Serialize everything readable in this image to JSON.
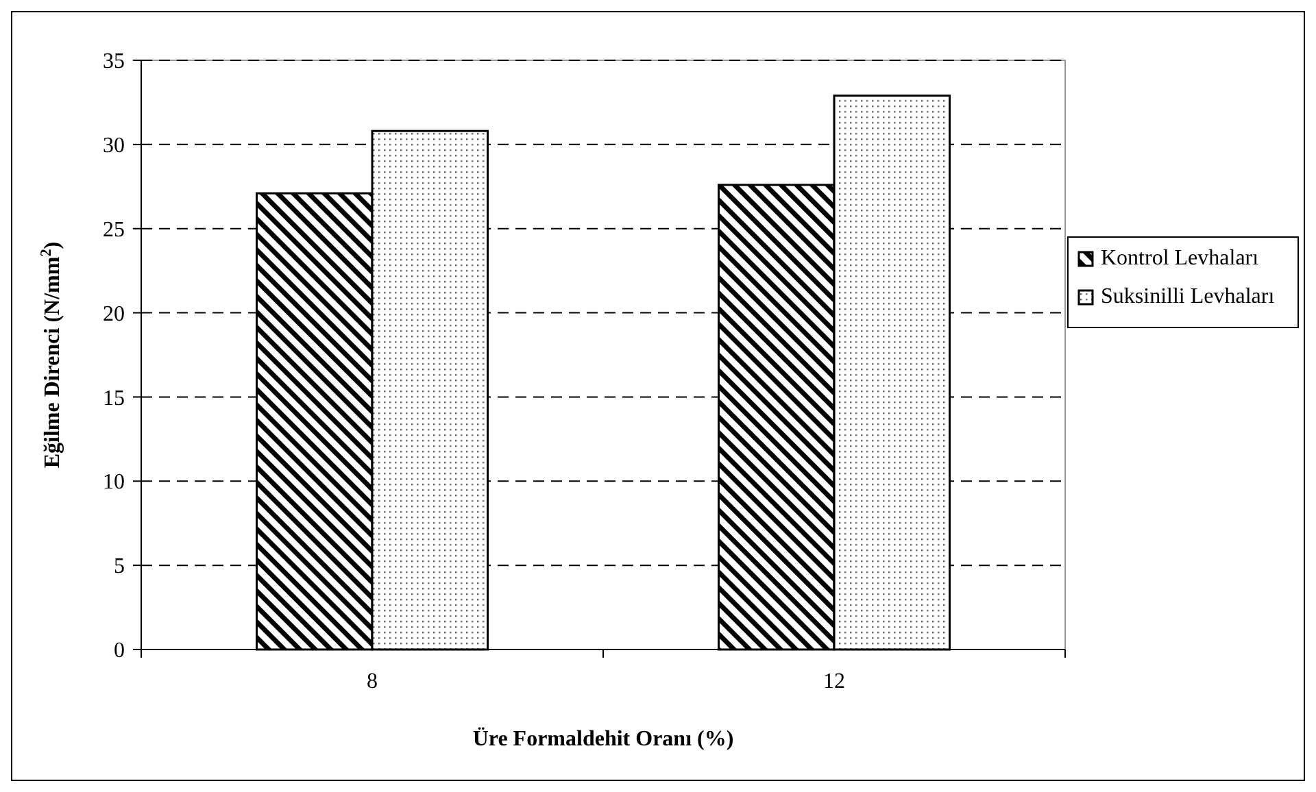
{
  "chart_data": {
    "type": "bar",
    "xlabel": "Üre Formaldehit Oranı (%)",
    "ylabel": "Eğilme Direnci (N/mm$^{2}$)",
    "categories": [
      "8",
      "12"
    ],
    "series": [
      {
        "name": "Kontrol Levhaları",
        "color": "#000000",
        "values": [
          27.1,
          27.6
        ]
      },
      {
        "name": "Suksinilli Levhaları",
        "color": "#000000",
        "values": [
          30.8,
          32.9
        ]
      }
    ],
    "ylim": [
      0,
      35
    ],
    "yticks": [
      0,
      5,
      10,
      15,
      20,
      25,
      30,
      35
    ],
    "grid": "y",
    "legend": "right"
  }
}
